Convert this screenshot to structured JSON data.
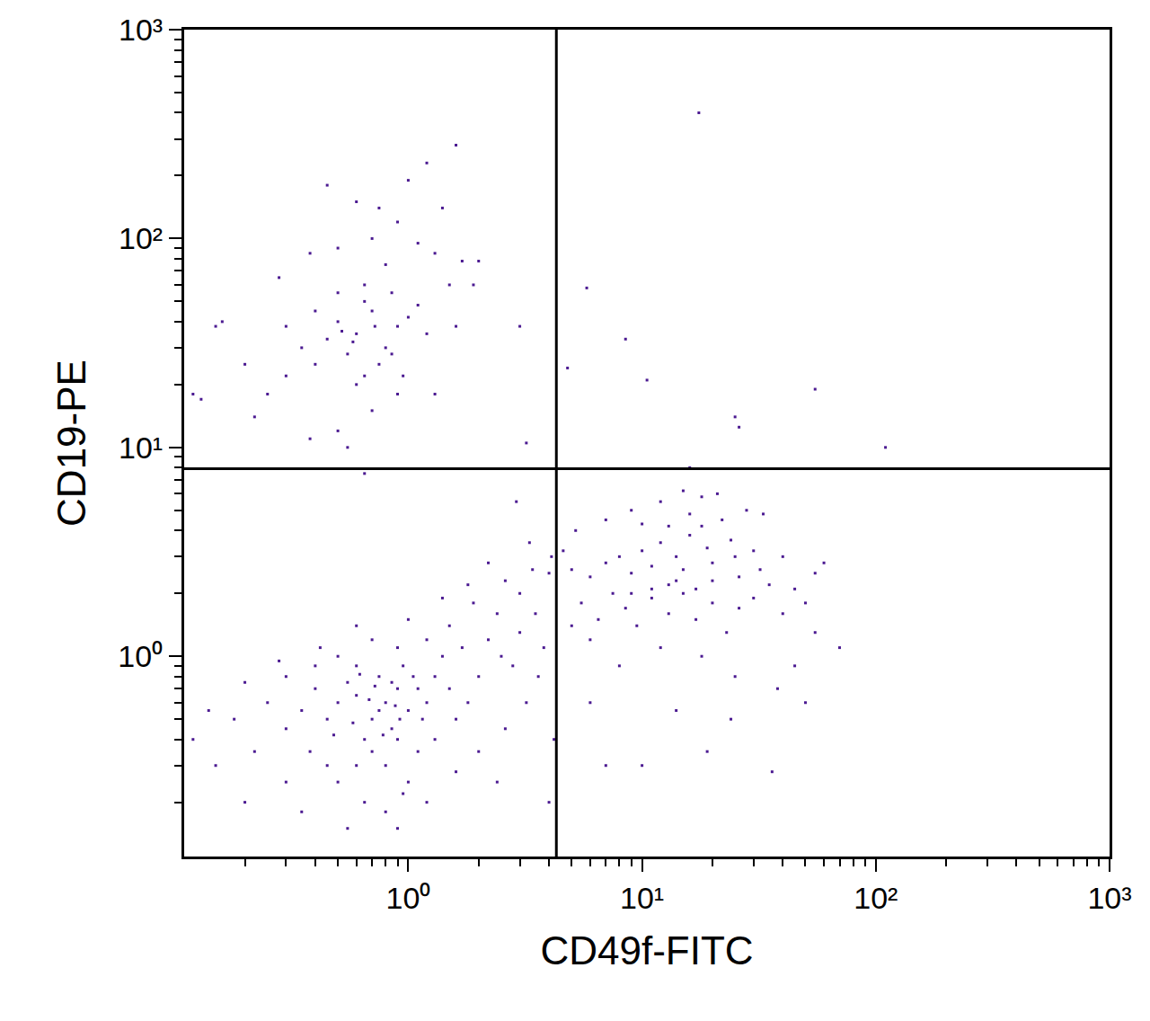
{
  "chart_data": {
    "type": "scatter",
    "x_label": "CD49f-FITC",
    "y_label": "CD19-PE",
    "log": true,
    "grid": false,
    "marker": "square",
    "xlim": [
      0.11,
      1000
    ],
    "ylim": [
      0.11,
      1000
    ],
    "xticks": [
      {
        "value": 1,
        "label": "10⁰"
      },
      {
        "value": 10,
        "label": "10¹"
      },
      {
        "value": 100,
        "label": "10²"
      },
      {
        "value": 1000,
        "label": "10³"
      }
    ],
    "yticks": [
      {
        "value": 1,
        "label": "10⁰"
      },
      {
        "value": 10,
        "label": "10¹"
      },
      {
        "value": 100,
        "label": "10²"
      },
      {
        "value": 1000,
        "label": "10³"
      }
    ],
    "quadrant": {
      "x": 4.3,
      "y": 7.9
    },
    "x": [
      0.8,
      0.7,
      0.9,
      0.6,
      1.0,
      0.75,
      0.85,
      0.65,
      1.1,
      0.5,
      0.55,
      0.95,
      1.2,
      0.45,
      0.7,
      0.8,
      1.3,
      0.6,
      0.4,
      1.5,
      1.4,
      0.35,
      0.3,
      0.25,
      0.2,
      0.18,
      0.15,
      0.22,
      0.3,
      0.5,
      0.65,
      0.8,
      1.0,
      1.1,
      1.3,
      1.6,
      1.8,
      2.0,
      1.7,
      1.2,
      0.9,
      0.7,
      0.5,
      0.4,
      0.3,
      0.6,
      1.0,
      1.5,
      2.2,
      2.5,
      2.8,
      3.0,
      2.4,
      1.9,
      1.4,
      0.9,
      0.75,
      0.85,
      0.68,
      0.92,
      1.05,
      0.58,
      0.72,
      0.88,
      0.62,
      0.78,
      1.15,
      0.48,
      0.38,
      0.42,
      0.28,
      0.14,
      0.12,
      0.2,
      0.35,
      0.9,
      0.55,
      1.2,
      2.0,
      2.6,
      3.2,
      3.6,
      3.8,
      3.5,
      3.0,
      2.6,
      3.4,
      4.0,
      2.2,
      1.8,
      3.3,
      2.9,
      4.1,
      4.2,
      4.0,
      2.4,
      1.6,
      0.95,
      0.6,
      0.45,
      5,
      6,
      7,
      8,
      9,
      10,
      11,
      12,
      13,
      14,
      15,
      16,
      17,
      18,
      19,
      20,
      22,
      24,
      26,
      28,
      30,
      33,
      5.5,
      6.5,
      7.5,
      8.5,
      9.5,
      11,
      13,
      15,
      17,
      20,
      23,
      26,
      30,
      35,
      40,
      45,
      50,
      55,
      60,
      70,
      45,
      38,
      25,
      18,
      12,
      8,
      6,
      5,
      4.6,
      5.2,
      7,
      9,
      12,
      15,
      18,
      21,
      16,
      13,
      10,
      14,
      19,
      36,
      7,
      10,
      24,
      50,
      6,
      16,
      11,
      14,
      20,
      9,
      25,
      32,
      40,
      55,
      0.6,
      0.5,
      0.7,
      0.8,
      0.55,
      0.65,
      0.45,
      0.9,
      0.75,
      1.0,
      0.4,
      0.35,
      0.3,
      0.85,
      1.1,
      1.2,
      0.95,
      0.6,
      0.5,
      0.4,
      0.3,
      0.25,
      0.22,
      0.2,
      0.16,
      0.15,
      0.13,
      0.12,
      0.28,
      0.38,
      0.5,
      0.65,
      0.8,
      1.1,
      1.3,
      1.5,
      1.7,
      2.0,
      1.9,
      1.6,
      1.3,
      0.9,
      0.7,
      0.5,
      0.38,
      0.55,
      0.45,
      0.6,
      0.75,
      0.9,
      1.2,
      1.6,
      1.0,
      1.4,
      0.7,
      0.65,
      0.58,
      0.72,
      0.52,
      0.85,
      17.5,
      5.8,
      8.5,
      10.5,
      25,
      26,
      55,
      110,
      4.8,
      3.2,
      3.0,
      0.65
    ],
    "series": [
      {
        "color": "#4b1a91",
        "values": [
          0.6,
          0.5,
          0.7,
          0.65,
          0.55,
          0.8,
          0.45,
          0.4,
          0.7,
          0.6,
          0.75,
          0.9,
          0.6,
          0.5,
          0.35,
          0.3,
          0.8,
          0.9,
          0.7,
          0.7,
          1.0,
          0.55,
          0.45,
          0.6,
          0.75,
          0.5,
          0.3,
          0.35,
          0.25,
          0.25,
          0.2,
          0.18,
          0.25,
          0.35,
          0.4,
          0.5,
          0.6,
          0.8,
          1.1,
          1.2,
          1.1,
          1.2,
          1.0,
          0.9,
          0.8,
          1.4,
          1.5,
          1.4,
          1.2,
          1.0,
          0.9,
          1.3,
          1.6,
          1.8,
          1.9,
          0.4,
          0.55,
          0.75,
          0.62,
          0.5,
          0.8,
          0.48,
          0.72,
          0.58,
          0.82,
          0.42,
          0.5,
          0.42,
          0.35,
          1.1,
          0.95,
          0.55,
          0.4,
          0.2,
          0.18,
          0.15,
          0.15,
          0.2,
          0.35,
          0.45,
          0.6,
          0.8,
          1.1,
          1.6,
          2.0,
          2.3,
          2.6,
          2.5,
          2.8,
          2.2,
          3.5,
          5.5,
          3.0,
          0.4,
          0.2,
          0.25,
          0.28,
          0.22,
          0.3,
          0.3,
          2.6,
          2.4,
          2.8,
          3.0,
          2.5,
          3.2,
          2.7,
          3.5,
          2.2,
          3.0,
          2.6,
          3.8,
          2.1,
          4.2,
          3.3,
          2.8,
          4.5,
          3.6,
          2.4,
          5.0,
          3.2,
          4.8,
          1.8,
          1.5,
          2.0,
          1.7,
          1.4,
          1.9,
          1.6,
          2.0,
          1.5,
          1.8,
          1.3,
          1.7,
          1.9,
          2.2,
          1.6,
          2.1,
          1.8,
          2.5,
          2.8,
          1.1,
          0.9,
          0.7,
          0.8,
          1.0,
          1.1,
          0.9,
          1.2,
          1.4,
          3.2,
          4.0,
          4.5,
          5.0,
          5.5,
          6.2,
          5.8,
          6.0,
          4.8,
          4.2,
          4.3,
          0.55,
          0.35,
          0.28,
          0.3,
          0.3,
          0.5,
          0.6,
          0.6,
          8.0,
          2.1,
          2.3,
          2.3,
          2.0,
          3.0,
          2.6,
          3.0,
          1.3,
          35,
          40,
          45,
          30,
          28,
          50,
          33,
          38,
          25,
          42,
          45,
          30,
          38,
          55,
          48,
          35,
          22,
          20,
          55,
          25,
          22,
          18,
          14,
          25,
          40,
          38,
          17,
          18,
          65,
          85,
          90,
          60,
          75,
          95,
          85,
          60,
          78,
          78,
          60,
          38,
          18,
          18,
          15,
          12,
          11,
          10,
          180,
          150,
          140,
          120,
          230,
          280,
          190,
          140,
          100,
          22,
          32,
          38,
          36,
          28,
          400,
          58,
          33,
          21,
          14,
          12.5,
          19,
          10,
          24,
          10.5,
          38,
          7.5
        ]
      }
    ]
  }
}
